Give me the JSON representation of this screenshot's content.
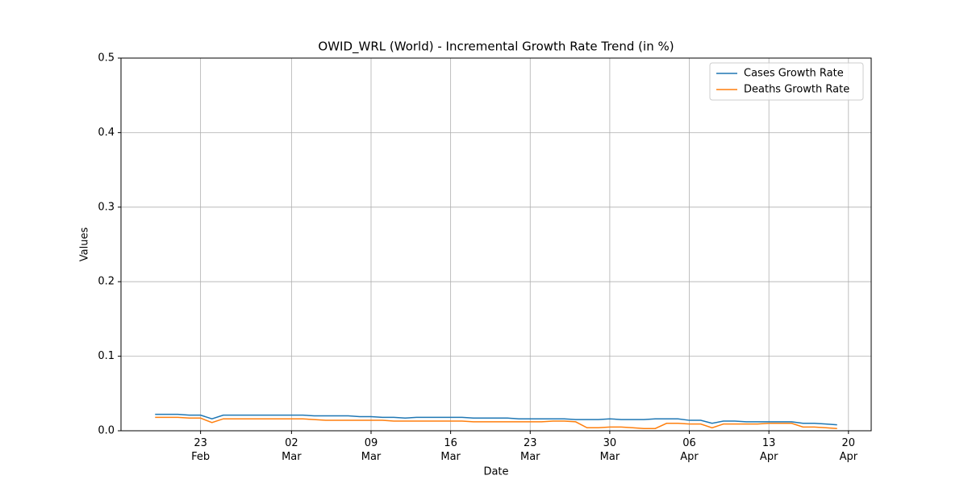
{
  "chart_data": {
    "type": "line",
    "title": "OWID_WRL (World) - Incremental Growth Rate Trend (in %)",
    "x_label": "Date",
    "y_label": "Values",
    "x": [
      "Feb 19",
      "Feb 20",
      "Feb 21",
      "Feb 22",
      "Feb 23",
      "Feb 24",
      "Feb 25",
      "Feb 26",
      "Feb 27",
      "Feb 28",
      "Feb 29",
      "Mar 1",
      "Mar 2",
      "Mar 3",
      "Mar 4",
      "Mar 5",
      "Mar 6",
      "Mar 7",
      "Mar 8",
      "Mar 9",
      "Mar 10",
      "Mar 11",
      "Mar 12",
      "Mar 13",
      "Mar 14",
      "Mar 15",
      "Mar 16",
      "Mar 17",
      "Mar 18",
      "Mar 19",
      "Mar 20",
      "Mar 21",
      "Mar 22",
      "Mar 23",
      "Mar 24",
      "Mar 25",
      "Mar 26",
      "Mar 27",
      "Mar 28",
      "Mar 29",
      "Mar 30",
      "Mar 31",
      "Apr 1",
      "Apr 2",
      "Apr 3",
      "Apr 4",
      "Apr 5",
      "Apr 6",
      "Apr 7",
      "Apr 8",
      "Apr 9",
      "Apr 10",
      "Apr 11",
      "Apr 12",
      "Apr 13",
      "Apr 14",
      "Apr 15",
      "Apr 16",
      "Apr 17",
      "Apr 18",
      "Apr 19"
    ],
    "series": [
      {
        "name": "Cases Growth Rate",
        "color": "#1f77b4",
        "values": [
          0.022,
          0.022,
          0.022,
          0.021,
          0.021,
          0.016,
          0.021,
          0.021,
          0.021,
          0.021,
          0.021,
          0.021,
          0.021,
          0.021,
          0.02,
          0.02,
          0.02,
          0.02,
          0.019,
          0.019,
          0.018,
          0.018,
          0.017,
          0.018,
          0.018,
          0.018,
          0.018,
          0.018,
          0.017,
          0.017,
          0.017,
          0.017,
          0.016,
          0.016,
          0.016,
          0.016,
          0.016,
          0.015,
          0.015,
          0.015,
          0.016,
          0.015,
          0.015,
          0.015,
          0.016,
          0.016,
          0.016,
          0.014,
          0.014,
          0.01,
          0.013,
          0.013,
          0.012,
          0.012,
          0.012,
          0.012,
          0.012,
          0.01,
          0.01,
          0.009,
          0.008
        ]
      },
      {
        "name": "Deaths Growth Rate",
        "color": "#ff7f0e",
        "values": [
          0.018,
          0.018,
          0.018,
          0.017,
          0.017,
          0.011,
          0.016,
          0.016,
          0.016,
          0.016,
          0.016,
          0.016,
          0.016,
          0.016,
          0.015,
          0.014,
          0.014,
          0.014,
          0.014,
          0.014,
          0.014,
          0.013,
          0.013,
          0.013,
          0.013,
          0.013,
          0.013,
          0.013,
          0.012,
          0.012,
          0.012,
          0.012,
          0.012,
          0.012,
          0.012,
          0.013,
          0.013,
          0.012,
          0.004,
          0.004,
          0.005,
          0.005,
          0.004,
          0.003,
          0.003,
          0.01,
          0.01,
          0.009,
          0.009,
          0.004,
          0.009,
          0.009,
          0.009,
          0.009,
          0.01,
          0.01,
          0.01,
          0.005,
          0.005,
          0.004,
          0.003
        ]
      }
    ],
    "xlim": [
      "Feb 16",
      "Apr 22"
    ],
    "xticks": [
      {
        "value": "Feb 23",
        "label": "23\nFeb"
      },
      {
        "value": "Mar 2",
        "label": "02\nMar"
      },
      {
        "value": "Mar 9",
        "label": "09\nMar"
      },
      {
        "value": "Mar 16",
        "label": "16\nMar"
      },
      {
        "value": "Mar 23",
        "label": "23\nMar"
      },
      {
        "value": "Mar 30",
        "label": "30\nMar"
      },
      {
        "value": "Apr 6",
        "label": "06\nApr"
      },
      {
        "value": "Apr 13",
        "label": "13\nApr"
      },
      {
        "value": "Apr 20",
        "label": "20\nApr"
      }
    ],
    "ylim": [
      0,
      0.5
    ],
    "yticks": [
      {
        "value": 0,
        "label": "0.0"
      },
      {
        "value": 0.1,
        "label": "0.1"
      },
      {
        "value": 0.2,
        "label": "0.2"
      },
      {
        "value": 0.3,
        "label": "0.3"
      },
      {
        "value": 0.4,
        "label": "0.4"
      },
      {
        "value": 0.5,
        "label": "0.5"
      }
    ],
    "grid": true,
    "legend": "upper right"
  }
}
